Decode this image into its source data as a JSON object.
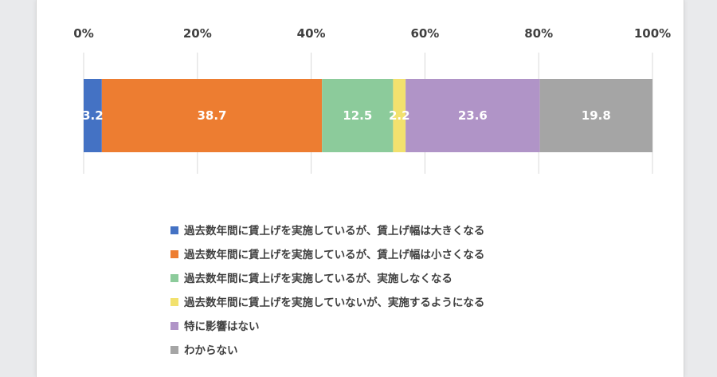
{
  "chart_data": {
    "type": "bar",
    "orientation": "horizontal",
    "stacked": true,
    "title": "",
    "xlabel": "",
    "ylabel": "",
    "xlim": [
      0,
      100
    ],
    "x_ticks": [
      "0%",
      "20%",
      "40%",
      "60%",
      "80%",
      "100%"
    ],
    "grid": true,
    "legend_position": "bottom",
    "categories": [
      ""
    ],
    "series": [
      {
        "name": "過去数年間に賃上げを実施しているが、賃上げ幅は大きくなる",
        "values": [
          3.2
        ],
        "label": "3.2",
        "color": "#4472c4"
      },
      {
        "name": "過去数年間に賃上げを実施しているが、賃上げ幅は小さくなる",
        "values": [
          38.7
        ],
        "label": "38.7",
        "color": "#ed7d31"
      },
      {
        "name": "過去数年間に賃上げを実施しているが、実施しなくなる",
        "values": [
          12.5
        ],
        "label": "12.5",
        "color": "#8ccb9b"
      },
      {
        "name": "過去数年間に賃上げを実施していないが、実施するようになる",
        "values": [
          2.2
        ],
        "label": "2.2",
        "color": "#f2e16e"
      },
      {
        "name": "特に影響はない",
        "values": [
          23.6
        ],
        "label": "23.6",
        "color": "#b094c7"
      },
      {
        "name": "わからない",
        "values": [
          19.8
        ],
        "label": "19.8",
        "color": "#a5a5a5"
      }
    ]
  }
}
